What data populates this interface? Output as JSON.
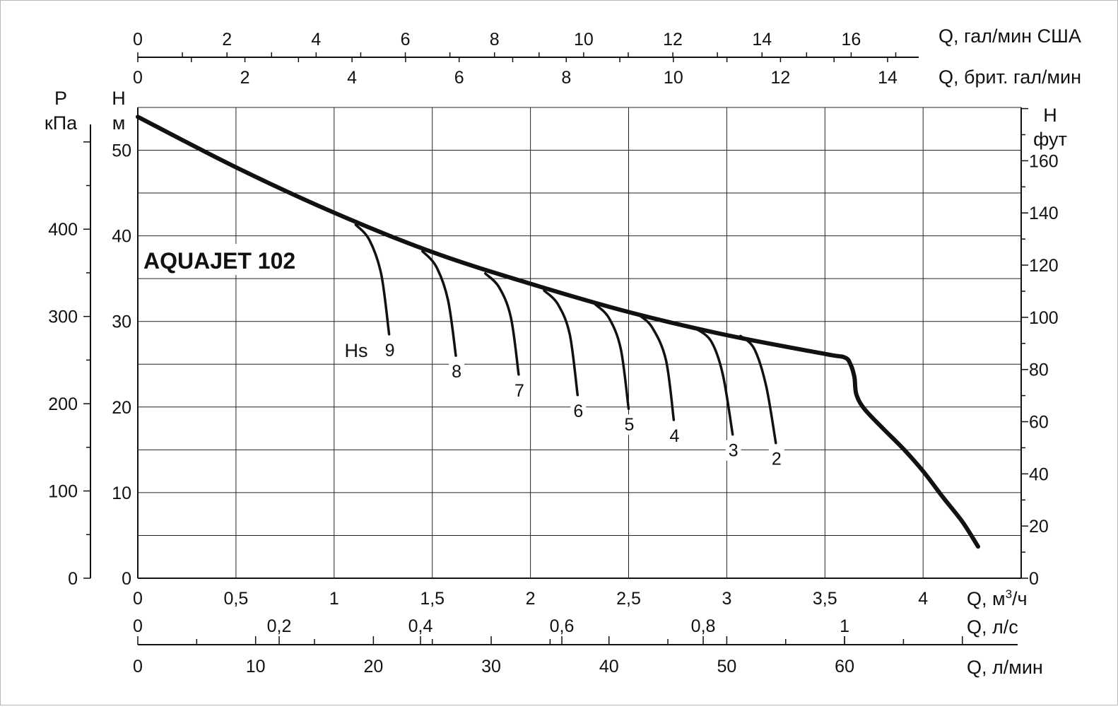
{
  "chart_data": {
    "type": "line",
    "title": "AQUAJET 102",
    "hs_label": "Hs",
    "x_axes": {
      "m3h": {
        "label_main": "Q, м",
        "label_sup": "3",
        "label_end": "/ч",
        "range": [
          0,
          4.5
        ],
        "ticks": [
          0,
          0.5,
          1,
          1.5,
          2,
          2.5,
          3,
          3.5,
          4
        ],
        "tick_labels": [
          "0",
          "0,5",
          "1",
          "1,5",
          "2",
          "2,5",
          "3",
          "3,5",
          "4"
        ]
      },
      "ls": {
        "label": "Q, л/с",
        "ticks": [
          0,
          0.2,
          0.4,
          0.6,
          0.8,
          1
        ],
        "tick_labels": [
          "0",
          "0,2",
          "0,4",
          "0,6",
          "0,8",
          "1"
        ]
      },
      "lmin": {
        "label": "Q, л/мин",
        "ticks": [
          0,
          10,
          20,
          30,
          40,
          50,
          60
        ],
        "tick_labels": [
          "0",
          "10",
          "20",
          "30",
          "40",
          "50",
          "60"
        ]
      },
      "us_gpm": {
        "label": "Q, гал/мин США",
        "ticks": [
          0,
          2,
          4,
          6,
          8,
          10,
          12,
          14,
          16
        ],
        "tick_labels": [
          "0",
          "2",
          "4",
          "6",
          "8",
          "10",
          "12",
          "14",
          "16"
        ]
      },
      "imp_gpm": {
        "label": "Q, брит. гал/мин",
        "ticks": [
          0,
          2,
          4,
          6,
          8,
          10,
          12,
          14
        ],
        "tick_labels": [
          "0",
          "2",
          "4",
          "6",
          "8",
          "10",
          "12",
          "14"
        ]
      }
    },
    "y_axes": {
      "m": {
        "label_top": "H",
        "label_unit": "м",
        "range": [
          0,
          55
        ],
        "ticks": [
          0,
          10,
          20,
          30,
          40,
          50
        ],
        "tick_labels": [
          "0",
          "10",
          "20",
          "30",
          "40",
          "50"
        ]
      },
      "kpa": {
        "label_top": "P",
        "label_unit": "кПа",
        "ticks": [
          0,
          100,
          200,
          300,
          400
        ],
        "tick_labels": [
          "0",
          "100",
          "200",
          "300",
          "400"
        ]
      },
      "ft": {
        "label_top": "H",
        "label_unit": "фут",
        "ticks": [
          0,
          20,
          40,
          60,
          80,
          100,
          120,
          140,
          160
        ],
        "tick_labels": [
          "0",
          "20",
          "40",
          "60",
          "80",
          "100",
          "120",
          "140",
          "160"
        ]
      }
    },
    "grid": true,
    "main_curve": {
      "x": [
        0,
        0.5,
        1.0,
        1.5,
        2.0,
        2.5,
        3.0,
        3.5,
        3.6,
        3.63,
        3.65,
        3.66,
        3.7,
        3.8,
        3.9,
        4.0,
        4.1,
        4.2,
        4.28
      ],
      "y": [
        53.9,
        48.0,
        42.7,
        38.1,
        34.4,
        31.1,
        28.4,
        26.2,
        25.8,
        25.0,
        23.5,
        21.5,
        19.8,
        17.4,
        15.1,
        12.5,
        9.5,
        6.6,
        3.7
      ]
    },
    "hs_curves": [
      {
        "label": "9",
        "x": [
          1.11,
          1.18,
          1.24,
          1.28
        ],
        "y": [
          41.3,
          39.5,
          35.5,
          28.5
        ]
      },
      {
        "label": "8",
        "x": [
          1.45,
          1.52,
          1.58,
          1.62
        ],
        "y": [
          38.2,
          36.4,
          32.5,
          26.0
        ]
      },
      {
        "label": "7",
        "x": [
          1.77,
          1.84,
          1.9,
          1.94
        ],
        "y": [
          35.6,
          34.0,
          30.5,
          23.8
        ]
      },
      {
        "label": "6",
        "x": [
          2.07,
          2.14,
          2.2,
          2.24
        ],
        "y": [
          33.6,
          32.0,
          28.5,
          21.4
        ]
      },
      {
        "label": "5",
        "x": [
          2.33,
          2.4,
          2.46,
          2.5
        ],
        "y": [
          32.0,
          30.4,
          26.8,
          19.8
        ]
      },
      {
        "label": "4",
        "x": [
          2.55,
          2.62,
          2.69,
          2.73
        ],
        "y": [
          30.8,
          29.3,
          25.5,
          18.5
        ]
      },
      {
        "label": "3",
        "x": [
          2.84,
          2.92,
          2.98,
          3.03
        ],
        "y": [
          29.2,
          27.7,
          23.8,
          16.8
        ]
      },
      {
        "label": "2",
        "x": [
          3.07,
          3.14,
          3.2,
          3.25
        ],
        "y": [
          28.3,
          26.8,
          22.5,
          15.8
        ]
      }
    ]
  }
}
